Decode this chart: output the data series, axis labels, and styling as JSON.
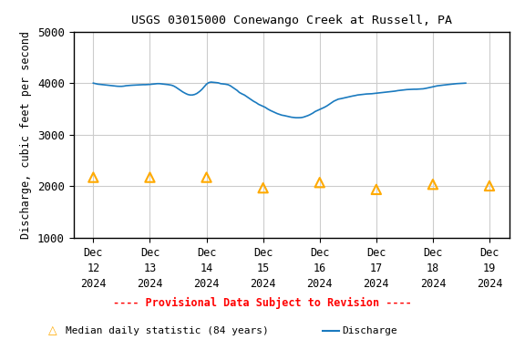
{
  "title": "USGS 03015000 Conewango Creek at Russell, PA",
  "ylabel": "Discharge, cubic feet per second",
  "ylim": [
    1000,
    5000
  ],
  "yticks": [
    1000,
    2000,
    3000,
    4000,
    5000
  ],
  "background_color": "#ffffff",
  "plot_bg_color": "#ffffff",
  "grid_color": "#cccccc",
  "discharge_color": "#1a7abf",
  "median_color": "#ffaa00",
  "provisional_color": "#ff0000",
  "x_tick_labels": [
    "Dec\n12\n2024",
    "Dec\n13\n2024",
    "Dec\n14\n2024",
    "Dec\n15\n2024",
    "Dec\n16\n2024",
    "Dec\n17\n2024",
    "Dec\n18\n2024",
    "Dec\n19\n2024"
  ],
  "x_tick_positions": [
    0,
    1,
    2,
    3,
    4,
    5,
    6,
    7
  ],
  "discharge_x": [
    0.0,
    0.04,
    0.08,
    0.13,
    0.17,
    0.21,
    0.25,
    0.29,
    0.33,
    0.38,
    0.42,
    0.46,
    0.5,
    0.54,
    0.58,
    0.63,
    0.67,
    0.71,
    0.75,
    0.79,
    0.83,
    0.88,
    0.92,
    0.96,
    1.0,
    1.04,
    1.08,
    1.13,
    1.17,
    1.21,
    1.25,
    1.29,
    1.33,
    1.38,
    1.42,
    1.46,
    1.5,
    1.54,
    1.58,
    1.63,
    1.67,
    1.71,
    1.75,
    1.79,
    1.83,
    1.88,
    1.92,
    1.96,
    2.0,
    2.04,
    2.08,
    2.13,
    2.17,
    2.21,
    2.25,
    2.29,
    2.33,
    2.38,
    2.42,
    2.46,
    2.5,
    2.54,
    2.58,
    2.63,
    2.67,
    2.71,
    2.75,
    2.79,
    2.83,
    2.88,
    2.92,
    2.96,
    3.0,
    3.04,
    3.08,
    3.13,
    3.17,
    3.21,
    3.25,
    3.29,
    3.33,
    3.38,
    3.42,
    3.46,
    3.5,
    3.54,
    3.58,
    3.63,
    3.67,
    3.71,
    3.75,
    3.79,
    3.83,
    3.88,
    3.92,
    3.96,
    4.0,
    4.04,
    4.08,
    4.13,
    4.17,
    4.21,
    4.25,
    4.29,
    4.33,
    4.38,
    4.42,
    4.46,
    4.5,
    4.54,
    4.58,
    4.63,
    4.67,
    4.71,
    4.75,
    4.79,
    4.83,
    4.88,
    4.92,
    4.96,
    5.0,
    5.04,
    5.08,
    5.13,
    5.17,
    5.21,
    5.25,
    5.29,
    5.33,
    5.38,
    5.42,
    5.46,
    5.5,
    5.54,
    5.58,
    5.63,
    5.67,
    5.71,
    5.75,
    5.79,
    5.83,
    5.88,
    5.92,
    5.96,
    6.0,
    6.04,
    6.08,
    6.13,
    6.17,
    6.21,
    6.25,
    6.29,
    6.33,
    6.38,
    6.42,
    6.46,
    6.5,
    6.54,
    6.58,
    6.63,
    6.67,
    6.71,
    6.75,
    6.79,
    6.83,
    6.88,
    6.92,
    6.96,
    7.0
  ],
  "discharge_y": [
    4000,
    3990,
    3980,
    3975,
    3970,
    3965,
    3960,
    3955,
    3950,
    3945,
    3940,
    3938,
    3938,
    3942,
    3950,
    3955,
    3958,
    3960,
    3962,
    3965,
    3968,
    3970,
    3970,
    3972,
    3975,
    3980,
    3985,
    3990,
    3990,
    3985,
    3980,
    3975,
    3970,
    3960,
    3945,
    3920,
    3890,
    3860,
    3830,
    3800,
    3780,
    3770,
    3770,
    3780,
    3800,
    3840,
    3880,
    3930,
    3980,
    4010,
    4020,
    4015,
    4010,
    4005,
    3990,
    3985,
    3980,
    3970,
    3950,
    3920,
    3890,
    3860,
    3820,
    3790,
    3770,
    3740,
    3710,
    3680,
    3650,
    3620,
    3590,
    3570,
    3550,
    3530,
    3500,
    3470,
    3450,
    3430,
    3410,
    3395,
    3380,
    3370,
    3360,
    3348,
    3340,
    3335,
    3330,
    3330,
    3332,
    3340,
    3355,
    3370,
    3390,
    3420,
    3450,
    3470,
    3490,
    3510,
    3530,
    3560,
    3590,
    3620,
    3650,
    3670,
    3690,
    3700,
    3710,
    3720,
    3730,
    3740,
    3750,
    3760,
    3770,
    3775,
    3780,
    3785,
    3790,
    3793,
    3795,
    3800,
    3805,
    3810,
    3815,
    3820,
    3825,
    3830,
    3835,
    3840,
    3845,
    3855,
    3860,
    3865,
    3870,
    3875,
    3878,
    3880,
    3882,
    3882,
    3885,
    3887,
    3890,
    3900,
    3910,
    3920,
    3930,
    3940,
    3948,
    3955,
    3960,
    3965,
    3970,
    3975,
    3980,
    3985,
    3990,
    3992,
    3995,
    3998,
    4000
  ],
  "median_x": [
    0,
    1,
    2,
    3,
    4,
    5,
    6,
    7
  ],
  "median_y": [
    2175,
    2175,
    2175,
    1970,
    2075,
    1940,
    2040,
    2010
  ],
  "legend_provisional_label": "---- Provisional Data Subject to Revision ----",
  "legend_median_label": "Median daily statistic (84 years)",
  "legend_discharge_label": "Discharge"
}
